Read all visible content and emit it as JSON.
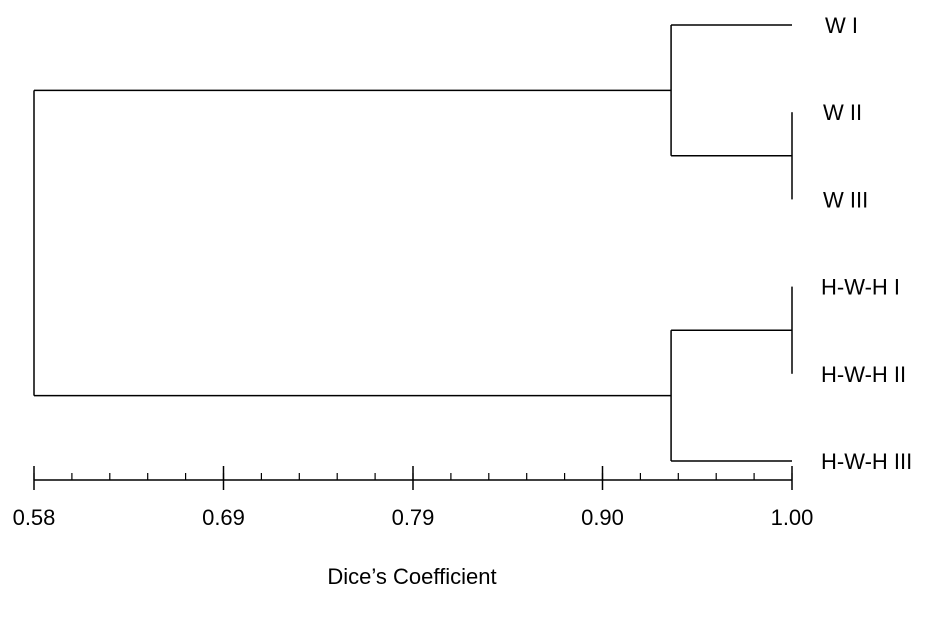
{
  "dendrogram": {
    "leaves": [
      {
        "id": "w1",
        "label": "W I"
      },
      {
        "id": "w2",
        "label": "W II"
      },
      {
        "id": "w3",
        "label": "W III"
      },
      {
        "id": "hwh1",
        "label": "H-W-H I"
      },
      {
        "id": "hwh2",
        "label": "H-W-H II"
      },
      {
        "id": "hwh3",
        "label": "H-W-H III"
      }
    ],
    "merges": [
      {
        "id": "m-w2-w3",
        "children": [
          "w2",
          "w3"
        ],
        "similarity": 1.0
      },
      {
        "id": "m-hwh1-hwh2",
        "children": [
          "hwh1",
          "hwh2"
        ],
        "similarity": 1.0
      },
      {
        "id": "m-w",
        "children": [
          "w1",
          "m-w2-w3"
        ],
        "similarity": 0.933
      },
      {
        "id": "m-hwh",
        "children": [
          "m-hwh1-hwh2",
          "hwh3"
        ],
        "similarity": 0.933
      },
      {
        "id": "m-root",
        "children": [
          "m-w",
          "m-hwh"
        ],
        "similarity": 0.58
      }
    ],
    "axis": {
      "title": "Dice’s Coefficient",
      "range": [
        0.58,
        1.0
      ],
      "major_ticks": [
        {
          "value": 0.58,
          "label": "0.58"
        },
        {
          "value": 0.685,
          "label": "0.69"
        },
        {
          "value": 0.79,
          "label": "0.79"
        },
        {
          "value": 0.895,
          "label": "0.90"
        },
        {
          "value": 1.0,
          "label": "1.00"
        }
      ],
      "minor_tick_step": 0.021
    }
  }
}
